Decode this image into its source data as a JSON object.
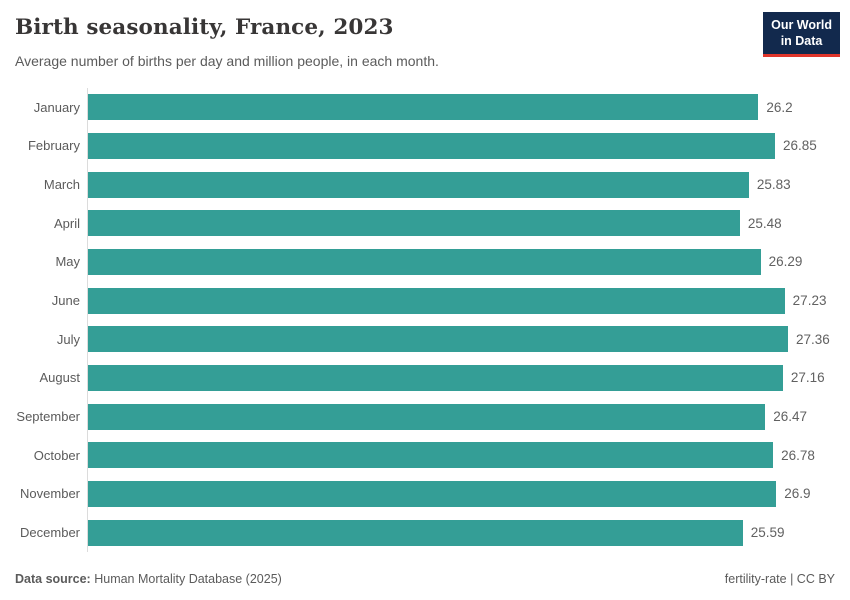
{
  "header": {
    "title": "Birth seasonality, France, 2023",
    "subtitle": "Average number of births per day and million people, in each month.",
    "logo": {
      "line1": "Our World",
      "line2": "in Data"
    }
  },
  "chart_data": {
    "type": "bar",
    "orientation": "horizontal",
    "title": "Birth seasonality, France, 2023",
    "categories": [
      "January",
      "February",
      "March",
      "April",
      "May",
      "June",
      "July",
      "August",
      "September",
      "October",
      "November",
      "December"
    ],
    "values": [
      26.2,
      26.85,
      25.83,
      25.48,
      26.29,
      27.23,
      27.36,
      27.16,
      26.47,
      26.78,
      26.9,
      25.59
    ],
    "value_labels": [
      "26.2",
      "26.85",
      "25.83",
      "25.48",
      "26.29",
      "27.23",
      "27.36",
      "27.16",
      "26.47",
      "26.78",
      "26.9",
      "25.59"
    ],
    "xlabel": "",
    "ylabel": "",
    "xlim": [
      0,
      27.36
    ],
    "grid": false,
    "legend": "none",
    "bar_color": "#349e96",
    "axis_line_color": "#dcdcdc"
  },
  "footer": {
    "source_label": "Data source:",
    "source_text": "Human Mortality Database (2025)",
    "note_right": "fertility-rate | CC BY"
  }
}
